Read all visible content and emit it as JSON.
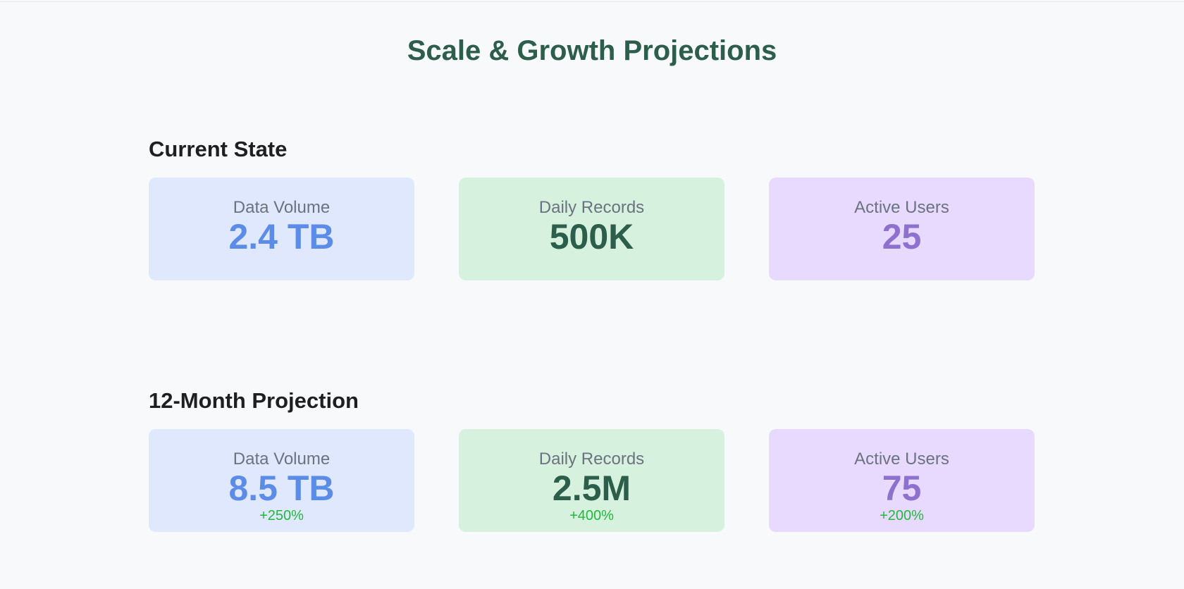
{
  "title": "Scale & Growth Projections",
  "colors": {
    "title": "#2d5e4b",
    "blue_value": "#5b8de8",
    "green_value": "#2d5e4b",
    "purple_value": "#8e70cf",
    "change": "#22b83e"
  },
  "current": {
    "heading": "Current State",
    "cards": [
      {
        "label": "Data Volume",
        "value": "2.4 TB"
      },
      {
        "label": "Daily Records",
        "value": "500K"
      },
      {
        "label": "Active Users",
        "value": "25"
      }
    ]
  },
  "projection": {
    "heading": "12-Month Projection",
    "cards": [
      {
        "label": "Data Volume",
        "value": "8.5 TB",
        "change": "+250%"
      },
      {
        "label": "Daily Records",
        "value": "2.5M",
        "change": "+400%"
      },
      {
        "label": "Active Users",
        "value": "75",
        "change": "+200%"
      }
    ]
  }
}
